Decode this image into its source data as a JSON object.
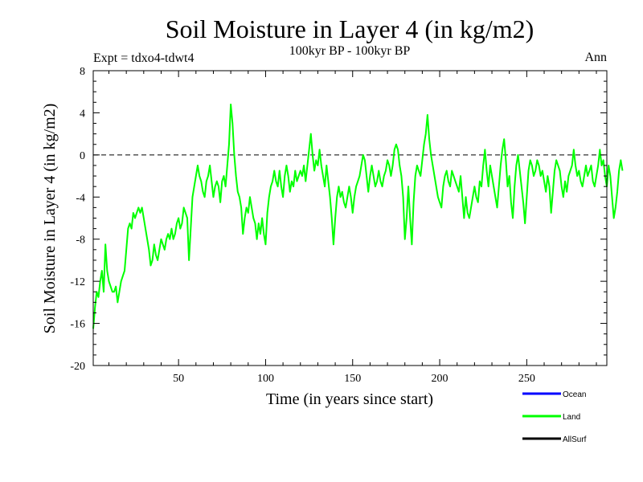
{
  "chart_data": {
    "type": "line",
    "title": "Soil Moisture in Layer 4 (in kg/m2)",
    "subtitle": "100kyr BP - 100kyr BP",
    "expt_label": "Expt = tdxo4-tdwt4",
    "season_label": "Ann",
    "xlabel": "Time (in years since start)",
    "ylabel": "Soil Moisture in Layer 4 (in kg/m2)",
    "xlim": [
      1,
      296
    ],
    "ylim": [
      -20,
      8
    ],
    "x_ticks": [
      50,
      100,
      150,
      200,
      250
    ],
    "y_ticks": [
      -20,
      -16,
      -12,
      -8,
      -4,
      0,
      4,
      8
    ],
    "y_tick_labels": [
      "-20",
      "-16",
      "-12",
      "-8",
      "-4",
      "0",
      "4",
      "8"
    ],
    "reference_line": 0,
    "legend": [
      {
        "name": "Ocean",
        "color": "#0000ff"
      },
      {
        "name": "Land",
        "color": "#00ff00"
      },
      {
        "name": "AllSurf",
        "color": "#000000"
      }
    ],
    "series": [
      {
        "name": "Land",
        "color": "#00ff00",
        "x_start": 1,
        "x_step": 1,
        "values": [
          -16.5,
          -14.5,
          -13,
          -13.5,
          -12,
          -11,
          -13,
          -8.5,
          -11,
          -12,
          -12.5,
          -13,
          -13,
          -12.5,
          -14,
          -13,
          -12,
          -11.5,
          -11,
          -9,
          -7,
          -6.5,
          -7,
          -5.5,
          -6,
          -5.5,
          -5,
          -5.5,
          -5,
          -6,
          -7,
          -8,
          -9,
          -10.5,
          -10,
          -8.5,
          -9.5,
          -10,
          -9,
          -8,
          -8.5,
          -9,
          -8,
          -7.5,
          -8,
          -7,
          -8,
          -7.5,
          -6.5,
          -6,
          -7,
          -6.5,
          -5,
          -5.5,
          -6,
          -10,
          -7,
          -4,
          -3,
          -2,
          -1,
          -2,
          -2.5,
          -3.5,
          -4,
          -2.5,
          -2,
          -1,
          -2.5,
          -4,
          -3,
          -2.5,
          -3,
          -4.5,
          -2.5,
          -2,
          -3,
          -1,
          1,
          4.8,
          3,
          0,
          -2,
          -3.5,
          -4,
          -5,
          -7.5,
          -6,
          -5,
          -5.5,
          -4,
          -5,
          -6,
          -6.5,
          -8,
          -6.5,
          -7.5,
          -6,
          -7.5,
          -8.5,
          -5.5,
          -4,
          -3,
          -2.5,
          -1.5,
          -2.5,
          -3,
          -1.5,
          -3,
          -4,
          -2,
          -1,
          -2,
          -3.5,
          -2.5,
          -3,
          -1.5,
          -2.5,
          -2,
          -1.5,
          -2,
          -1,
          -2.5,
          -1,
          0.5,
          2,
          0,
          -1.5,
          -0.5,
          -1,
          0.5,
          -1,
          -2,
          -3,
          -1,
          -2.5,
          -4,
          -6,
          -8.5,
          -6,
          -4,
          -3,
          -4,
          -3.5,
          -4.5,
          -5,
          -4,
          -3,
          -4,
          -5.5,
          -4,
          -3,
          -2.5,
          -2,
          -1,
          0,
          -0.5,
          -2,
          -3.5,
          -2,
          -1,
          -2,
          -3,
          -2.5,
          -1.5,
          -2.5,
          -3,
          -2,
          -1.5,
          -0.5,
          -1,
          -2,
          -1,
          0.5,
          1,
          0.5,
          -1,
          -2,
          -4,
          -8,
          -6,
          -3,
          -6,
          -8.5,
          -4.5,
          -2,
          -1,
          -1.5,
          -2,
          -0.5,
          1,
          2,
          3.8,
          1.5,
          0,
          -1,
          -2,
          -3,
          -4,
          -4.5,
          -5,
          -3,
          -2,
          -1.5,
          -2.5,
          -3,
          -1.5,
          -2,
          -2.5,
          -3,
          -3.5,
          -2,
          -4,
          -6,
          -4,
          -5.5,
          -6,
          -5,
          -4,
          -3,
          -4,
          -4.5,
          -2.5,
          -3,
          -1,
          0.5,
          -1.5,
          -3,
          -1,
          -2,
          -3,
          -4,
          -5,
          -3,
          -1,
          0.5,
          1.5,
          -0.5,
          -3,
          -2,
          -4.5,
          -6,
          -3,
          -1,
          0,
          -1.5,
          -3,
          -4.5,
          -6.5,
          -4,
          -1.5,
          -0.5,
          -1,
          -2,
          -1.5,
          -0.5,
          -1,
          -2,
          -1.5,
          -2.5,
          -3.5,
          -2,
          -3,
          -5.5,
          -3.5,
          -1.5,
          -0.5,
          -1,
          -1.5,
          -3,
          -4,
          -2.5,
          -3.5,
          -2,
          -1.5,
          -1,
          0.5,
          -1,
          -2,
          -1.5,
          -2.5,
          -3,
          -2,
          -1,
          -2,
          -1.5,
          -1,
          -2.5,
          -3,
          -2,
          -1,
          0.5,
          -1,
          -0.5,
          -2,
          -3,
          -1,
          -2,
          -4,
          -6,
          -5,
          -3.5,
          -1.5,
          -0.5,
          -1.5
        ]
      }
    ]
  }
}
